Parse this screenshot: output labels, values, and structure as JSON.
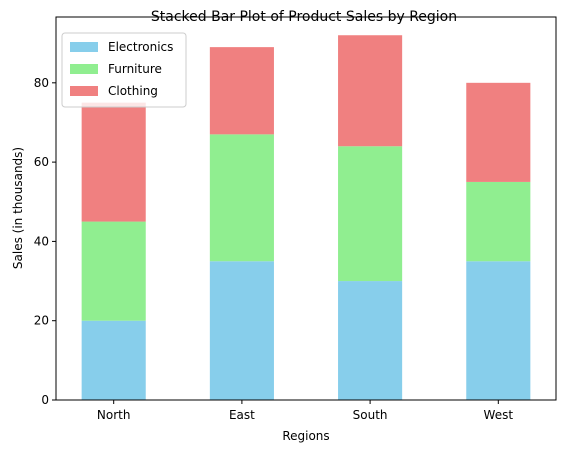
{
  "chart_data": {
    "type": "bar",
    "stacked": true,
    "title": "Stacked Bar Plot of Product Sales by Region",
    "xlabel": "Regions",
    "ylabel": "Sales (in thousands)",
    "categories": [
      "North",
      "East",
      "South",
      "West"
    ],
    "ylim": [
      0,
      96.6
    ],
    "yticks": [
      0,
      20,
      40,
      60,
      80
    ],
    "grid": false,
    "legend_position": "top-left",
    "series": [
      {
        "name": "Electronics",
        "color": "#87ceeb",
        "values": [
          20,
          35,
          30,
          35
        ]
      },
      {
        "name": "Furniture",
        "color": "#90ee90",
        "values": [
          25,
          32,
          34,
          20
        ]
      },
      {
        "name": "Clothing",
        "color": "#f08080",
        "values": [
          30,
          22,
          28,
          25
        ]
      }
    ]
  }
}
